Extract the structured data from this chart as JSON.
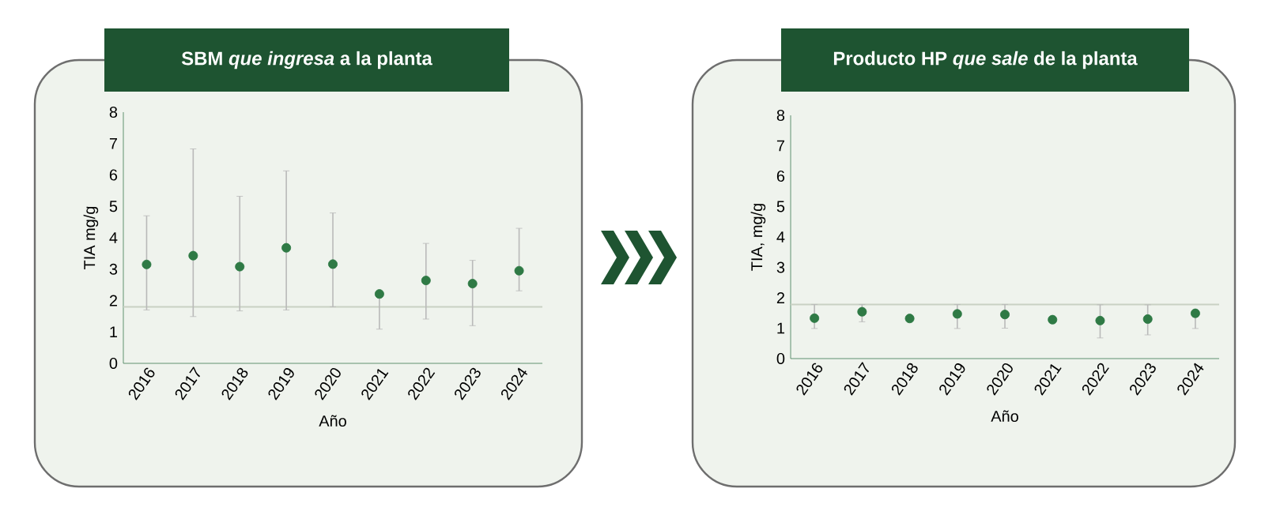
{
  "chart_data": [
    {
      "type": "scatter",
      "title": "SBM *que ingresa* a la planta",
      "xlabel": "Año",
      "ylabel": "TIA mg/g",
      "categories": [
        "2016",
        "2017",
        "2018",
        "2019",
        "2020",
        "2021",
        "2022",
        "2023",
        "2024"
      ],
      "series": [
        {
          "color": "#2f7a45",
          "values": [
            3.15,
            3.43,
            3.08,
            3.68,
            3.16,
            2.21,
            2.64,
            2.54,
            2.95
          ],
          "errors": [
            [
              1.7,
              4.7
            ],
            [
              1.49,
              6.83
            ],
            [
              1.67,
              5.32
            ],
            [
              1.7,
              6.13
            ],
            [
              1.8,
              4.79
            ],
            [
              1.09,
              2.21
            ],
            [
              1.41,
              3.82
            ],
            [
              1.2,
              3.28
            ],
            [
              2.31,
              4.3
            ]
          ]
        }
      ],
      "ylim": [
        0,
        8
      ],
      "yticks": [
        0,
        1,
        2,
        3,
        4,
        5,
        6,
        7,
        8
      ],
      "marker": "circle",
      "ref_lines": [
        {
          "axis": "y",
          "value": 1.8,
          "color": "#c9d1c4"
        }
      ]
    },
    {
      "type": "scatter",
      "title": "Producto HP *que sale* de la planta",
      "xlabel": "Año",
      "ylabel": "TIA, mg/g",
      "categories": [
        "2016",
        "2017",
        "2018",
        "2019",
        "2020",
        "2021",
        "2022",
        "2023",
        "2024"
      ],
      "series": [
        {
          "color": "#2f7a45",
          "values": [
            1.33,
            1.54,
            1.32,
            1.47,
            1.45,
            1.28,
            1.25,
            1.3,
            1.49
          ],
          "errors": [
            [
              0.99,
              1.78
            ],
            [
              1.21,
              1.78
            ],
            null,
            [
              0.99,
              1.78
            ],
            [
              1.0,
              1.78
            ],
            null,
            [
              0.68,
              1.77
            ],
            [
              0.78,
              1.77
            ],
            [
              0.99,
              1.49
            ]
          ]
        }
      ],
      "ylim": [
        0,
        8
      ],
      "yticks": [
        0,
        1,
        2,
        3,
        4,
        5,
        6,
        7,
        8
      ],
      "marker": "circle",
      "ref_lines": [
        {
          "axis": "y",
          "value": 1.78,
          "color": "#c9d1c4"
        }
      ]
    }
  ]
}
